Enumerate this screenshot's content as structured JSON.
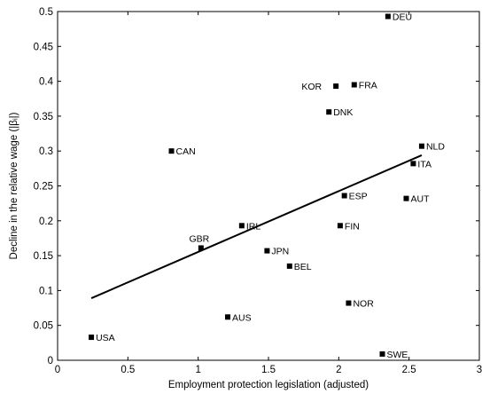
{
  "chart_data": {
    "type": "scatter",
    "xlabel": "Employment protection legislation (adjusted)",
    "ylabel": "Decline in the relative wage (|βᵢ|)",
    "xlim": [
      0,
      3
    ],
    "ylim": [
      0,
      0.5
    ],
    "xticks": [
      "0",
      "0.5",
      "1",
      "1.5",
      "2",
      "2.5",
      "3"
    ],
    "yticks": [
      "0",
      "0.05",
      "0.1",
      "0.15",
      "0.2",
      "0.25",
      "0.3",
      "0.35",
      "0.4",
      "0.45",
      "0.5"
    ],
    "grid": false,
    "marker_color": "#000000",
    "points": [
      {
        "label": "DEU",
        "x": 2.35,
        "y": 0.493
      },
      {
        "label": "KOR",
        "x": 1.98,
        "y": 0.393
      },
      {
        "label": "FRA",
        "x": 2.11,
        "y": 0.395
      },
      {
        "label": "DNK",
        "x": 1.93,
        "y": 0.356
      },
      {
        "label": "CAN",
        "x": 0.81,
        "y": 0.3
      },
      {
        "label": "NLD",
        "x": 2.59,
        "y": 0.307
      },
      {
        "label": "ITA",
        "x": 2.53,
        "y": 0.282
      },
      {
        "label": "ESP",
        "x": 2.04,
        "y": 0.236
      },
      {
        "label": "AUT",
        "x": 2.48,
        "y": 0.232
      },
      {
        "label": "IRL",
        "x": 1.31,
        "y": 0.193
      },
      {
        "label": "FIN",
        "x": 2.01,
        "y": 0.193
      },
      {
        "label": "GBR",
        "x": 1.02,
        "y": 0.161
      },
      {
        "label": "JPN",
        "x": 1.49,
        "y": 0.157
      },
      {
        "label": "BEL",
        "x": 1.65,
        "y": 0.135
      },
      {
        "label": "NOR",
        "x": 2.07,
        "y": 0.082
      },
      {
        "label": "AUS",
        "x": 1.21,
        "y": 0.062
      },
      {
        "label": "USA",
        "x": 0.24,
        "y": 0.033
      },
      {
        "label": "SWE",
        "x": 2.31,
        "y": 0.009
      }
    ],
    "fit_line": {
      "x": [
        0.24,
        2.59
      ],
      "y": [
        0.089,
        0.294
      ]
    }
  }
}
